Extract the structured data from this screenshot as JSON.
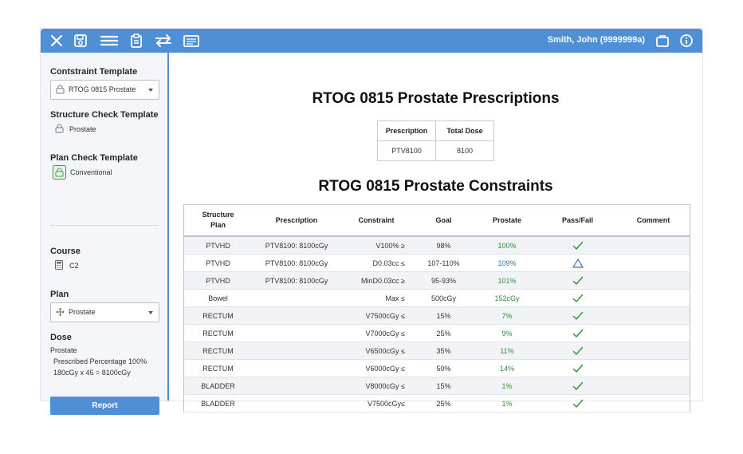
{
  "header": {
    "user_name": "Smith, John (9999999a)",
    "icons": [
      "close-icon",
      "save-icon",
      "menu-icon",
      "clipboard-icon",
      "swap-icon",
      "list-icon",
      "briefcase-icon",
      "info-icon"
    ]
  },
  "sidebar": {
    "constraint_template_heading": "Contstraint Template",
    "constraint_template_value": "RTOG 0815 Prostate",
    "structure_check_heading": "Structure Check Template",
    "structure_check_value": "Prostate",
    "plan_check_heading": "Plan Check Template",
    "plan_check_value": "Conventional",
    "course_heading": "Course",
    "course_value": "C2",
    "plan_heading": "Plan",
    "plan_value": "Prostate",
    "dose_heading": "Dose",
    "dose_line1": "Prostate",
    "dose_line2": "Prescribed Percentage 100%",
    "dose_line3": "180cGy x 45 = 8100cGy",
    "report_button": "Report"
  },
  "main": {
    "prescriptions_title": "RTOG 0815 Prostate Prescriptions",
    "prescriptions_headers": [
      "Prescription",
      "Total Dose"
    ],
    "prescriptions_rows": [
      [
        "PTV8100",
        "8100"
      ]
    ],
    "constraints_title": "RTOG 0815 Prostate Constraints",
    "constraints_headers": {
      "structure_line1": "Structure",
      "structure_line2": "Plan",
      "prescription": "Prescription",
      "constraint": "Constraint",
      "goal": "Goal",
      "prostate": "Prostate",
      "pass_fail": "Pass/Fail",
      "comment": "Comment"
    },
    "constraints_rows": [
      {
        "structure": "PTVHD",
        "prescription": "PTV8100: 8100cGy",
        "constraint": "V100% ≥",
        "goal": "98%",
        "prostate": "100%",
        "status": "pass"
      },
      {
        "structure": "PTVHD",
        "prescription": "PTV8100: 8100cGy",
        "constraint": "D0.03cc ≤",
        "goal": "107-110%",
        "prostate": "109%",
        "status": "warn"
      },
      {
        "structure": "PTVHD",
        "prescription": "PTV8100: 8100cGy",
        "constraint": "MinD0.03cc ≥",
        "goal": "95-93%",
        "prostate": "101%",
        "status": "pass"
      },
      {
        "structure": "Bowel",
        "prescription": "",
        "constraint": "Max ≤",
        "goal": "500cGy",
        "prostate": "152cGy",
        "status": "pass"
      },
      {
        "structure": "RECTUM",
        "prescription": "",
        "constraint": "V7500cGy ≤",
        "goal": "15%",
        "prostate": "7%",
        "status": "pass"
      },
      {
        "structure": "RECTUM",
        "prescription": "",
        "constraint": "V7000cGy ≤",
        "goal": "25%",
        "prostate": "9%",
        "status": "pass"
      },
      {
        "structure": "RECTUM",
        "prescription": "",
        "constraint": "V6500cGy ≤",
        "goal": "35%",
        "prostate": "11%",
        "status": "pass"
      },
      {
        "structure": "RECTUM",
        "prescription": "",
        "constraint": "V6000cGy ≤",
        "goal": "50%",
        "prostate": "14%",
        "status": "pass"
      },
      {
        "structure": "BLADDER",
        "prescription": "",
        "constraint": "V8000cGy ≤",
        "goal": "15%",
        "prostate": "1%",
        "status": "pass"
      },
      {
        "structure": "BLADDER",
        "prescription": "",
        "constraint": "V7500cGy≤",
        "goal": "25%",
        "prostate": "1%",
        "status": "pass"
      }
    ]
  },
  "colors": {
    "accent": "#4f8fd6",
    "pass": "#2f8f3a",
    "warn": "#3a6ea8",
    "sidebar_bg": "#f4f6f9"
  }
}
